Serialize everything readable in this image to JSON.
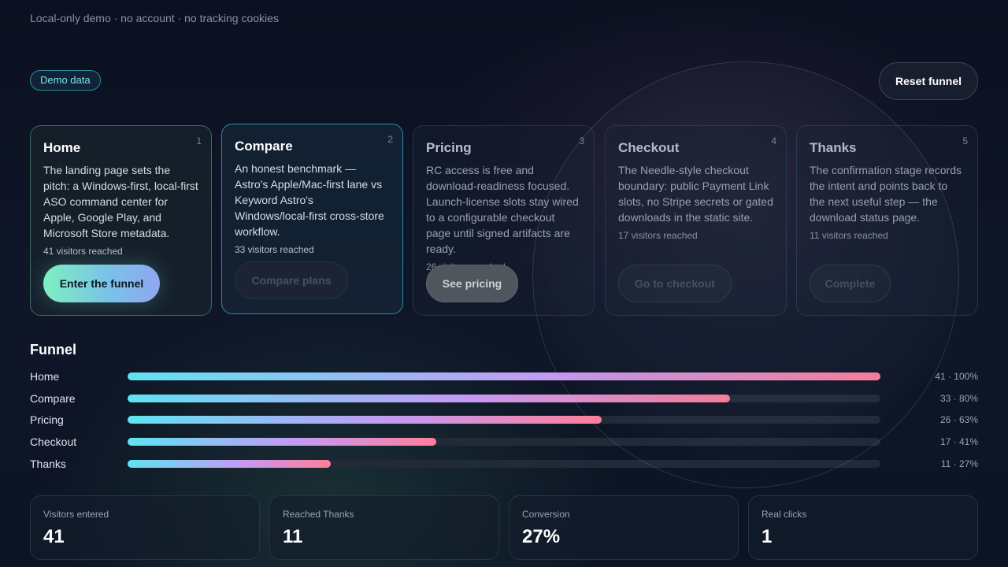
{
  "notice": "Local-only demo · no account · no tracking cookies",
  "badge": "Demo data",
  "reset_label": "Reset funnel",
  "stages": [
    {
      "number": "1",
      "title": "Home",
      "description": "The landing page sets the pitch: a Windows-first, local-first ASO command center for Apple, Google Play, and Microsoft Store metadata.",
      "reached": "41 visitors reached",
      "cta": "Enter the funnel"
    },
    {
      "number": "2",
      "title": "Compare",
      "description": "An honest benchmark — Astro's Apple/Mac-first lane vs Keyword Astro's Windows/local-first cross-store workflow.",
      "reached": "33 visitors reached",
      "cta": "Compare plans"
    },
    {
      "number": "3",
      "title": "Pricing",
      "description": "RC access is free and download-readiness focused. Launch-license slots stay wired to a configurable checkout page until signed artifacts are ready.",
      "reached": "26 visitors reached",
      "cta": "See pricing"
    },
    {
      "number": "4",
      "title": "Checkout",
      "description": "The Needle-style checkout boundary: public Payment Link slots, no Stripe secrets or gated downloads in the static site.",
      "reached": "17 visitors reached",
      "cta": "Go to checkout"
    },
    {
      "number": "5",
      "title": "Thanks",
      "description": "The confirmation stage records the intent and points back to the next useful step — the download status page.",
      "reached": "11 visitors reached",
      "cta": "Complete"
    }
  ],
  "funnel": {
    "title": "Funnel",
    "rows": [
      {
        "label": "Home",
        "fraction": 1.0,
        "value": "41 · 100%"
      },
      {
        "label": "Compare",
        "fraction": 0.8,
        "value": "33 · 80%"
      },
      {
        "label": "Pricing",
        "fraction": 0.63,
        "value": "26 · 63%"
      },
      {
        "label": "Checkout",
        "fraction": 0.41,
        "value": "17 · 41%"
      },
      {
        "label": "Thanks",
        "fraction": 0.27,
        "value": "11 · 27%"
      }
    ]
  },
  "stats": [
    {
      "label": "Visitors entered",
      "value": "41"
    },
    {
      "label": "Reached Thanks",
      "value": "11"
    },
    {
      "label": "Conversion",
      "value": "27%"
    },
    {
      "label": "Real clicks",
      "value": "1"
    }
  ],
  "colors": {
    "accent_cyan": "#5fe3f2",
    "accent_violet": "#c39bf4",
    "accent_pink": "#ff7e9a",
    "cta_green": "#7ef0c0"
  }
}
